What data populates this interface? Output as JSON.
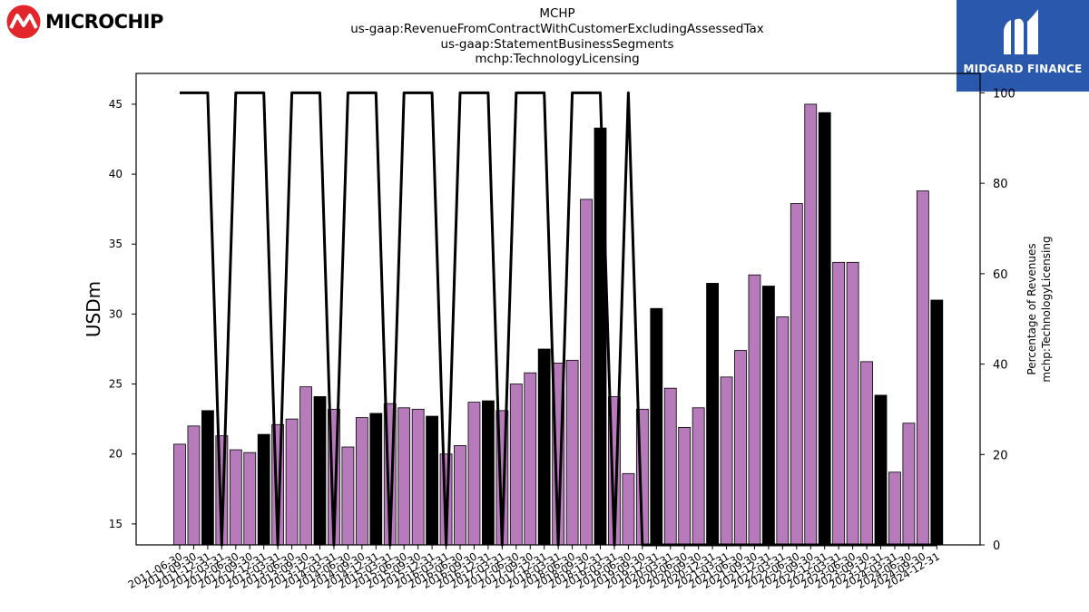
{
  "branding": {
    "company_name": "MICROCHIP",
    "company_logo_icon": "microchip-logo-icon",
    "publisher_name": "MIDGARD FINANCE",
    "publisher_logo_icon": "midgard-logo-icon",
    "colors": {
      "company_red": "#e3262b",
      "publisher_blue": "#2a58ad"
    }
  },
  "chart_data": {
    "type": "bar",
    "title_lines": [
      "MCHP",
      "us-gaap:RevenueFromContractWithCustomerExcludingAssessedTax",
      "us-gaap:StatementBusinessSegments",
      "mchp:TechnologyLicensing"
    ],
    "ylabel": "USDm",
    "y2label_lines": [
      "Percentage of Revenues",
      "mchp:TechnologyLicensing"
    ],
    "ylim": [
      13.5,
      47.2
    ],
    "y2lim": [
      0,
      104.3
    ],
    "yticks": [
      15,
      20,
      25,
      30,
      35,
      40,
      45
    ],
    "y2ticks": [
      0,
      20,
      40,
      60,
      80,
      100
    ],
    "grid": false,
    "colors": {
      "bar_default": "#b77bbb",
      "bar_highlight": "#000000",
      "line": "#000000"
    },
    "categories": [
      "2011-06-30",
      "2011-09-30",
      "2011-12-31",
      "2012-03-31",
      "2012-06-30",
      "2012-09-30",
      "2012-12-31",
      "2013-03-31",
      "2013-06-30",
      "2013-09-30",
      "2013-12-31",
      "2014-03-31",
      "2014-06-30",
      "2014-09-30",
      "2014-12-31",
      "2015-03-31",
      "2015-06-30",
      "2015-09-30",
      "2015-12-31",
      "2016-03-31",
      "2016-06-30",
      "2016-09-30",
      "2016-12-31",
      "2017-03-31",
      "2017-06-30",
      "2017-09-30",
      "2017-12-31",
      "2018-03-31",
      "2018-06-30",
      "2018-09-30",
      "2018-12-31",
      "2019-03-31",
      "2019-06-30",
      "2019-09-30",
      "2019-12-31",
      "2020-03-31",
      "2020-06-30",
      "2020-09-30",
      "2020-12-31",
      "2021-03-31",
      "2021-06-30",
      "2021-09-30",
      "2021-12-31",
      "2022-03-31",
      "2022-06-30",
      "2022-09-30",
      "2022-12-31",
      "2023-03-31",
      "2023-06-30",
      "2023-09-30",
      "2023-12-31",
      "2024-03-31",
      "2024-06-30",
      "2024-09-30",
      "2024-12-31"
    ],
    "series": [
      {
        "kind": "bar",
        "values": [
          20.7,
          22.0,
          23.1,
          21.3,
          20.3,
          20.1,
          21.4,
          22.1,
          22.5,
          24.8,
          24.1,
          23.2,
          20.5,
          22.6,
          22.9,
          23.6,
          23.3,
          23.2,
          22.7,
          20.0,
          20.6,
          23.7,
          23.8,
          23.1,
          25.0,
          25.8,
          27.5,
          26.5,
          26.7,
          38.2,
          43.3,
          24.1,
          18.6,
          23.2,
          30.4,
          24.7,
          21.9,
          23.3,
          32.2,
          25.5,
          27.4,
          32.8,
          32.0,
          29.8,
          37.9,
          45.0,
          44.4,
          33.7,
          33.7,
          26.6,
          24.2,
          18.7,
          22.2,
          38.8,
          31.0
        ],
        "highlight": [
          false,
          false,
          true,
          false,
          false,
          false,
          true,
          false,
          false,
          false,
          true,
          false,
          false,
          false,
          true,
          false,
          false,
          false,
          true,
          false,
          false,
          false,
          true,
          false,
          false,
          false,
          true,
          false,
          false,
          false,
          true,
          false,
          false,
          false,
          true,
          false,
          false,
          false,
          true,
          false,
          false,
          false,
          true,
          false,
          false,
          false,
          true,
          false,
          false,
          false,
          true,
          false,
          false,
          false,
          true
        ]
      },
      {
        "kind": "line",
        "axis": "right",
        "values": [
          100,
          100,
          100,
          0,
          100,
          100,
          100,
          0,
          100,
          100,
          100,
          0,
          100,
          100,
          100,
          0,
          100,
          100,
          100,
          0,
          100,
          100,
          100,
          0,
          100,
          100,
          100,
          0,
          100,
          100,
          100,
          0,
          100,
          0,
          0,
          0,
          0,
          0,
          0,
          0,
          0,
          0,
          0,
          0,
          0,
          0,
          0,
          0,
          0,
          0,
          0,
          0,
          0,
          0,
          0
        ]
      }
    ]
  }
}
